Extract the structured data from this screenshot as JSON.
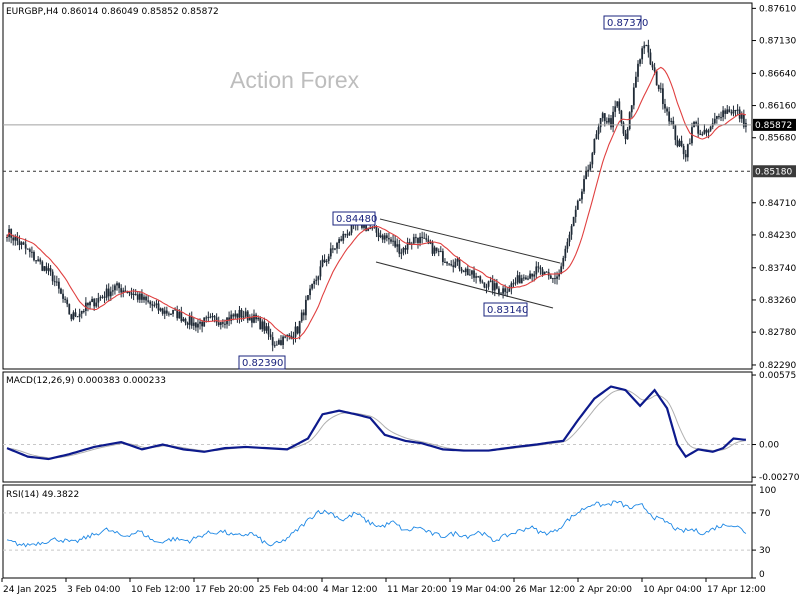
{
  "colors": {
    "candle": "#1f2a36",
    "ma": "#e04040",
    "macd": "#0d1a8c",
    "macd_signal": "#b0b0b0",
    "rsi": "#1e88e5",
    "annotation_border": "#1a237e",
    "level_box": "#3a3a3a",
    "grid": "#c8c8c8"
  },
  "watermark": "Action Forex",
  "chart_data": [
    {
      "type": "candlestick",
      "title": "EURGBP,H4  0.86014 0.86049 0.85852 0.85872",
      "yticks": [
        "0.87610",
        "0.87130",
        "0.86640",
        "0.86160",
        "0.85680",
        "0.84710",
        "0.84230",
        "0.83740",
        "0.83260",
        "0.82780",
        "0.82290"
      ],
      "ylim": [
        0.8223,
        0.8769
      ],
      "xticks": [
        "24 Jan 2025",
        "3 Feb 04:00",
        "10 Feb 12:00",
        "17 Feb 20:00",
        "25 Feb 04:00",
        "4 Mar 12:00",
        "11 Mar 20:00",
        "19 Mar 04:00",
        "26 Mar 12:00",
        "2 Apr 20:00",
        "10 Apr 04:00",
        "17 Apr 12:00"
      ],
      "close_anchors": [
        [
          0,
          0.8428
        ],
        [
          8,
          0.8405
        ],
        [
          16,
          0.838
        ],
        [
          22,
          0.836
        ],
        [
          26,
          0.8333
        ],
        [
          31,
          0.83
        ],
        [
          38,
          0.8315
        ],
        [
          45,
          0.833
        ],
        [
          52,
          0.8345
        ],
        [
          58,
          0.834
        ],
        [
          66,
          0.8325
        ],
        [
          74,
          0.831
        ],
        [
          82,
          0.8305
        ],
        [
          90,
          0.829
        ],
        [
          98,
          0.8295
        ],
        [
          106,
          0.8298
        ],
        [
          112,
          0.8305
        ],
        [
          118,
          0.83
        ],
        [
          124,
          0.8285
        ],
        [
          128,
          0.8262
        ],
        [
          134,
          0.8268
        ],
        [
          140,
          0.8282
        ],
        [
          144,
          0.832
        ],
        [
          148,
          0.835
        ],
        [
          152,
          0.838
        ],
        [
          158,
          0.8405
        ],
        [
          163,
          0.8425
        ],
        [
          170,
          0.844
        ],
        [
          176,
          0.843
        ],
        [
          183,
          0.8418
        ],
        [
          190,
          0.84
        ],
        [
          197,
          0.842
        ],
        [
          204,
          0.8405
        ],
        [
          210,
          0.839
        ],
        [
          217,
          0.838
        ],
        [
          224,
          0.8362
        ],
        [
          231,
          0.835
        ],
        [
          238,
          0.834
        ],
        [
          244,
          0.835
        ],
        [
          250,
          0.8365
        ],
        [
          256,
          0.837
        ],
        [
          262,
          0.8355
        ],
        [
          266,
          0.8365
        ],
        [
          270,
          0.841
        ],
        [
          274,
          0.8455
        ],
        [
          279,
          0.851
        ],
        [
          283,
          0.856
        ],
        [
          287,
          0.86
        ],
        [
          291,
          0.859
        ],
        [
          294,
          0.862
        ],
        [
          298,
          0.856
        ],
        [
          301,
          0.862
        ],
        [
          304,
          0.868
        ],
        [
          307,
          0.871
        ],
        [
          311,
          0.867
        ],
        [
          315,
          0.8635
        ],
        [
          319,
          0.86
        ],
        [
          323,
          0.856
        ],
        [
          327,
          0.8545
        ],
        [
          331,
          0.859
        ],
        [
          335,
          0.857
        ],
        [
          339,
          0.858
        ],
        [
          343,
          0.8605
        ],
        [
          348,
          0.861
        ],
        [
          352,
          0.8605
        ],
        [
          356,
          0.8587
        ]
      ],
      "level_line": "0.85180",
      "current_price": "0.85872",
      "annotations": [
        {
          "label": "0.87370",
          "value": 0.8737
        },
        {
          "label": "0.84480",
          "value": 0.8448
        },
        {
          "label": "0.83140",
          "value": 0.8314
        },
        {
          "label": "0.82390",
          "value": 0.8239
        }
      ],
      "indicator": "Moving average (red)"
    },
    {
      "type": "line",
      "title": "MACD(12,26,9) 0.000383 0.000233",
      "yticks": [
        "0.00575",
        "0.00",
        "-0.00270"
      ],
      "ylim": [
        -0.0031,
        0.006
      ],
      "series": [
        {
          "role": "macd",
          "anchors": [
            [
              0,
              -0.0003
            ],
            [
              10,
              -0.001
            ],
            [
              20,
              -0.0012
            ],
            [
              30,
              -0.0008
            ],
            [
              42,
              -0.0002
            ],
            [
              55,
              0.0002
            ],
            [
              65,
              -0.0004
            ],
            [
              75,
              0.0
            ],
            [
              85,
              -0.0004
            ],
            [
              95,
              -0.0006
            ],
            [
              105,
              -0.0003
            ],
            [
              115,
              -0.0002
            ],
            [
              125,
              -0.0003
            ],
            [
              135,
              -0.0004
            ],
            [
              145,
              0.0005
            ],
            [
              152,
              0.0025
            ],
            [
              160,
              0.0028
            ],
            [
              168,
              0.0025
            ],
            [
              175,
              0.0022
            ],
            [
              182,
              0.0008
            ],
            [
              192,
              0.0003
            ],
            [
              200,
              0.0001
            ],
            [
              210,
              -0.0004
            ],
            [
              220,
              -0.0005
            ],
            [
              232,
              -0.0005
            ],
            [
              245,
              -0.0002
            ],
            [
              255,
              0.0
            ],
            [
              263,
              0.0002
            ],
            [
              268,
              0.0003
            ],
            [
              275,
              0.002
            ],
            [
              283,
              0.0038
            ],
            [
              291,
              0.0048
            ],
            [
              298,
              0.0045
            ],
            [
              305,
              0.0032
            ],
            [
              312,
              0.0045
            ],
            [
              318,
              0.003
            ],
            [
              323,
              0.0
            ],
            [
              327,
              -0.001
            ],
            [
              333,
              -0.0004
            ],
            [
              340,
              -0.0006
            ],
            [
              345,
              -0.0003
            ],
            [
              350,
              0.0005
            ],
            [
              355,
              0.0004
            ]
          ]
        }
      ]
    },
    {
      "type": "line",
      "title": "RSI(14) 49.3822",
      "yticks": [
        "100",
        "70",
        "30",
        "0"
      ],
      "ylim": [
        0,
        100
      ],
      "series": [
        {
          "role": "rsi",
          "anchors": [
            [
              0,
              40
            ],
            [
              8,
              35
            ],
            [
              16,
              38
            ],
            [
              24,
              42
            ],
            [
              32,
              38
            ],
            [
              40,
              45
            ],
            [
              48,
              52
            ],
            [
              56,
              45
            ],
            [
              64,
              50
            ],
            [
              72,
              38
            ],
            [
              80,
              42
            ],
            [
              88,
              40
            ],
            [
              96,
              48
            ],
            [
              104,
              50
            ],
            [
              110,
              45
            ],
            [
              118,
              48
            ],
            [
              126,
              35
            ],
            [
              132,
              38
            ],
            [
              138,
              48
            ],
            [
              144,
              60
            ],
            [
              150,
              72
            ],
            [
              156,
              70
            ],
            [
              162,
              62
            ],
            [
              168,
              70
            ],
            [
              174,
              60
            ],
            [
              180,
              55
            ],
            [
              186,
              60
            ],
            [
              192,
              50
            ],
            [
              198,
              55
            ],
            [
              204,
              48
            ],
            [
              210,
              45
            ],
            [
              216,
              48
            ],
            [
              222,
              45
            ],
            [
              228,
              50
            ],
            [
              234,
              40
            ],
            [
              240,
              45
            ],
            [
              246,
              50
            ],
            [
              252,
              55
            ],
            [
              258,
              48
            ],
            [
              264,
              50
            ],
            [
              270,
              62
            ],
            [
              276,
              72
            ],
            [
              282,
              80
            ],
            [
              288,
              78
            ],
            [
              294,
              82
            ],
            [
              300,
              75
            ],
            [
              306,
              78
            ],
            [
              312,
              65
            ],
            [
              318,
              60
            ],
            [
              324,
              50
            ],
            [
              330,
              52
            ],
            [
              336,
              48
            ],
            [
              342,
              55
            ],
            [
              348,
              58
            ],
            [
              352,
              55
            ],
            [
              356,
              49
            ]
          ]
        }
      ],
      "levels": [
        70,
        30
      ]
    }
  ]
}
